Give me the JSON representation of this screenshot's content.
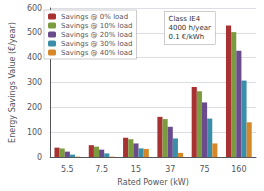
{
  "chart_data": {
    "type": "bar",
    "categories": [
      "5.5",
      "7.5",
      "15",
      "37",
      "75",
      "160"
    ],
    "series": [
      {
        "name": "Savings @ 0% load",
        "color": "#A83232",
        "values": [
          38,
          48,
          78,
          162,
          282,
          530
        ]
      },
      {
        "name": "Savings @ 10% load",
        "color": "#7B9C3E",
        "values": [
          35,
          42,
          72,
          153,
          265,
          503
        ]
      },
      {
        "name": "Savings @ 20% load",
        "color": "#6A4C8C",
        "values": [
          22,
          30,
          55,
          122,
          220,
          428
        ]
      },
      {
        "name": "Savings @ 30% load",
        "color": "#3A8FA8",
        "values": [
          10,
          15,
          35,
          75,
          155,
          308
        ]
      },
      {
        "name": "Savings @ 40% load",
        "color": "#D4882A",
        "values": [
          2,
          2,
          33,
          17,
          55,
          140
        ]
      }
    ],
    "xlabel": "Rated Power (kW)",
    "ylabel": "Energy Savings Value (€/year)",
    "ylim": [
      0,
      600
    ],
    "yticks": [
      0,
      100,
      200,
      300,
      400,
      500,
      600
    ],
    "annotation": "Class IE4\n4000 h/year\n0.1 €/kWh",
    "grid": true,
    "legend": "upper left"
  }
}
